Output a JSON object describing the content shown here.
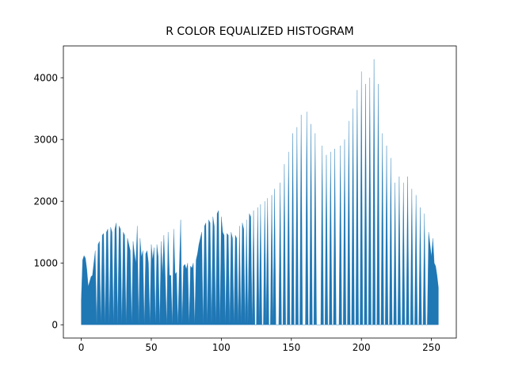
{
  "chart_data": {
    "type": "area",
    "title": "R COLOR EQUALIZED HISTOGRAM",
    "color": "#1f77b4",
    "x": [
      0,
      1,
      2,
      3,
      4,
      5,
      6,
      7,
      8,
      9,
      10,
      11,
      12,
      13,
      14,
      15,
      16,
      17,
      18,
      19,
      20,
      21,
      22,
      23,
      24,
      25,
      26,
      27,
      28,
      29,
      30,
      31,
      32,
      33,
      34,
      35,
      36,
      37,
      38,
      39,
      40,
      41,
      42,
      43,
      44,
      45,
      46,
      47,
      48,
      49,
      50,
      51,
      52,
      53,
      54,
      55,
      56,
      57,
      58,
      59,
      60,
      61,
      62,
      63,
      64,
      65,
      66,
      67,
      68,
      69,
      70,
      71,
      72,
      73,
      74,
      75,
      76,
      77,
      78,
      79,
      80,
      81,
      82,
      83,
      84,
      85,
      86,
      87,
      88,
      89,
      90,
      91,
      92,
      93,
      94,
      95,
      96,
      97,
      98,
      99,
      100,
      101,
      102,
      103,
      104,
      105,
      106,
      107,
      108,
      109,
      110,
      111,
      112,
      113,
      114,
      115,
      116,
      117,
      118,
      119,
      120,
      121,
      122,
      123,
      124,
      125,
      126,
      127,
      128,
      129,
      130,
      131,
      132,
      133,
      134,
      135,
      136,
      137,
      138,
      139,
      140,
      141,
      142,
      143,
      144,
      145,
      146,
      147,
      148,
      149,
      150,
      151,
      152,
      153,
      154,
      155,
      156,
      157,
      158,
      159,
      160,
      161,
      162,
      163,
      164,
      165,
      166,
      167,
      168,
      169,
      170,
      171,
      172,
      173,
      174,
      175,
      176,
      177,
      178,
      179,
      180,
      181,
      182,
      183,
      184,
      185,
      186,
      187,
      188,
      189,
      190,
      191,
      192,
      193,
      194,
      195,
      196,
      197,
      198,
      199,
      200,
      201,
      202,
      203,
      204,
      205,
      206,
      207,
      208,
      209,
      210,
      211,
      212,
      213,
      214,
      215,
      216,
      217,
      218,
      219,
      220,
      221,
      222,
      223,
      224,
      225,
      226,
      227,
      228,
      229,
      230,
      231,
      232,
      233,
      234,
      235,
      236,
      237,
      238,
      239,
      240,
      241,
      242,
      243,
      244,
      245,
      246,
      247,
      248,
      249,
      250,
      251,
      252,
      253,
      254,
      255
    ],
    "values": [
      400,
      1050,
      1120,
      1080,
      900,
      620,
      700,
      780,
      800,
      1000,
      1200,
      0,
      1300,
      1350,
      0,
      1450,
      1480,
      0,
      1500,
      1550,
      0,
      1580,
      1500,
      0,
      1550,
      1650,
      0,
      1600,
      1550,
      0,
      1500,
      1450,
      0,
      1400,
      1300,
      1200,
      0,
      1350,
      1150,
      1000,
      1600,
      0,
      1400,
      1100,
      1200,
      0,
      1150,
      1200,
      1000,
      0,
      1300,
      1050,
      1250,
      0,
      1300,
      1100,
      0,
      1350,
      800,
      1450,
      780,
      0,
      1500,
      800,
      800,
      0,
      1550,
      820,
      850,
      0,
      900,
      1700,
      0,
      950,
      980,
      900,
      1000,
      0,
      950,
      920,
      1000,
      0,
      1050,
      1150,
      1300,
      1400,
      1500,
      0,
      1600,
      1650,
      0,
      1700,
      1650,
      0,
      1750,
      1600,
      0,
      1800,
      1850,
      0,
      1750,
      1500,
      1450,
      0,
      1480,
      1450,
      0,
      1500,
      1400,
      0,
      1450,
      1400,
      0,
      1600,
      0,
      1650,
      1550,
      0,
      1700,
      0,
      1800,
      1750,
      0,
      1850,
      0,
      0,
      1900,
      0,
      1950,
      0,
      0,
      2000,
      0,
      2050,
      0,
      0,
      2100,
      0,
      2200,
      0,
      0,
      0,
      2300,
      0,
      0,
      2600,
      0,
      0,
      2800,
      0,
      0,
      3100,
      0,
      0,
      3200,
      0,
      0,
      3400,
      0,
      0,
      0,
      3450,
      0,
      0,
      3250,
      0,
      0,
      3100,
      0,
      0,
      0,
      0,
      2900,
      0,
      0,
      2750,
      0,
      0,
      2800,
      0,
      0,
      2850,
      0,
      0,
      0,
      2900,
      0,
      0,
      3000,
      0,
      0,
      3300,
      0,
      0,
      3500,
      0,
      0,
      3800,
      0,
      0,
      4100,
      0,
      0,
      3900,
      0,
      0,
      4000,
      0,
      0,
      4300,
      0,
      0,
      3900,
      0,
      0,
      3100,
      0,
      0,
      2900,
      0,
      0,
      2700,
      0,
      0,
      2300,
      0,
      0,
      2400,
      0,
      0,
      2300,
      0,
      0,
      2400,
      0,
      0,
      2200,
      0,
      0,
      2100,
      0,
      0,
      1900,
      0,
      0,
      1800,
      0,
      0,
      1500,
      1300,
      1100,
      1400,
      1000,
      950,
      800,
      600
    ],
    "xlim": [
      -12.75,
      267.75
    ],
    "xticks": [
      0,
      50,
      100,
      150,
      200,
      250
    ],
    "ylim": [
      -215,
      4515
    ],
    "yticks": [
      0,
      1000,
      2000,
      3000,
      4000
    ]
  }
}
